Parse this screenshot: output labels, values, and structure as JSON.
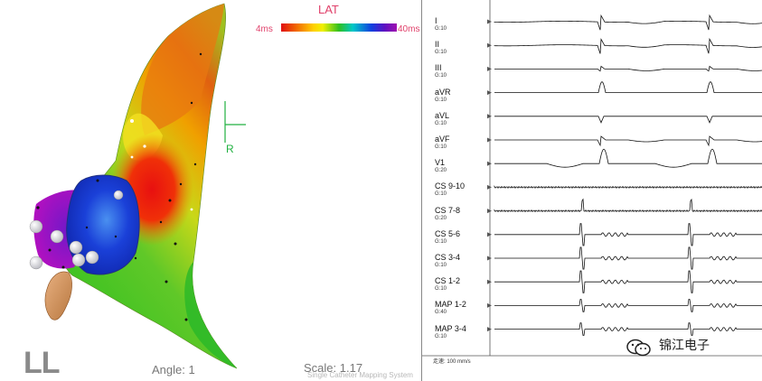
{
  "map": {
    "legend_title": "LAT",
    "legend_min": "4ms",
    "legend_max": "40ms",
    "view": "LL",
    "angle": "Angle: 1",
    "scale": "Scale: 1.17",
    "system_watermark": "Single Catheter Mapping System",
    "orientation_letter": "R",
    "colors": {
      "early": "#e01010",
      "mid": "#30c020",
      "late": "#1040e0",
      "latest": "#a010b0"
    }
  },
  "ecg": {
    "channels": [
      {
        "label": "I",
        "gain": "G:10"
      },
      {
        "label": "II",
        "gain": "G:10"
      },
      {
        "label": "III",
        "gain": "G:10"
      },
      {
        "label": "aVR",
        "gain": "G:10"
      },
      {
        "label": "aVL",
        "gain": "G:10"
      },
      {
        "label": "aVF",
        "gain": "G:10"
      },
      {
        "label": "V1",
        "gain": "G:20"
      },
      {
        "label": "CS 9-10",
        "gain": "G:10"
      },
      {
        "label": "CS 7-8",
        "gain": "G:20"
      },
      {
        "label": "CS 5-6",
        "gain": "G:10"
      },
      {
        "label": "CS 3-4",
        "gain": "G:10"
      },
      {
        "label": "CS 1-2",
        "gain": "G:10"
      },
      {
        "label": "MAP 1-2",
        "gain": "G:40"
      },
      {
        "label": "MAP 3-4",
        "gain": "G:10"
      }
    ],
    "speed": "走速: 100 mm/s"
  },
  "brand": {
    "text": "锦江电子",
    "icon": "wechat-icon"
  }
}
